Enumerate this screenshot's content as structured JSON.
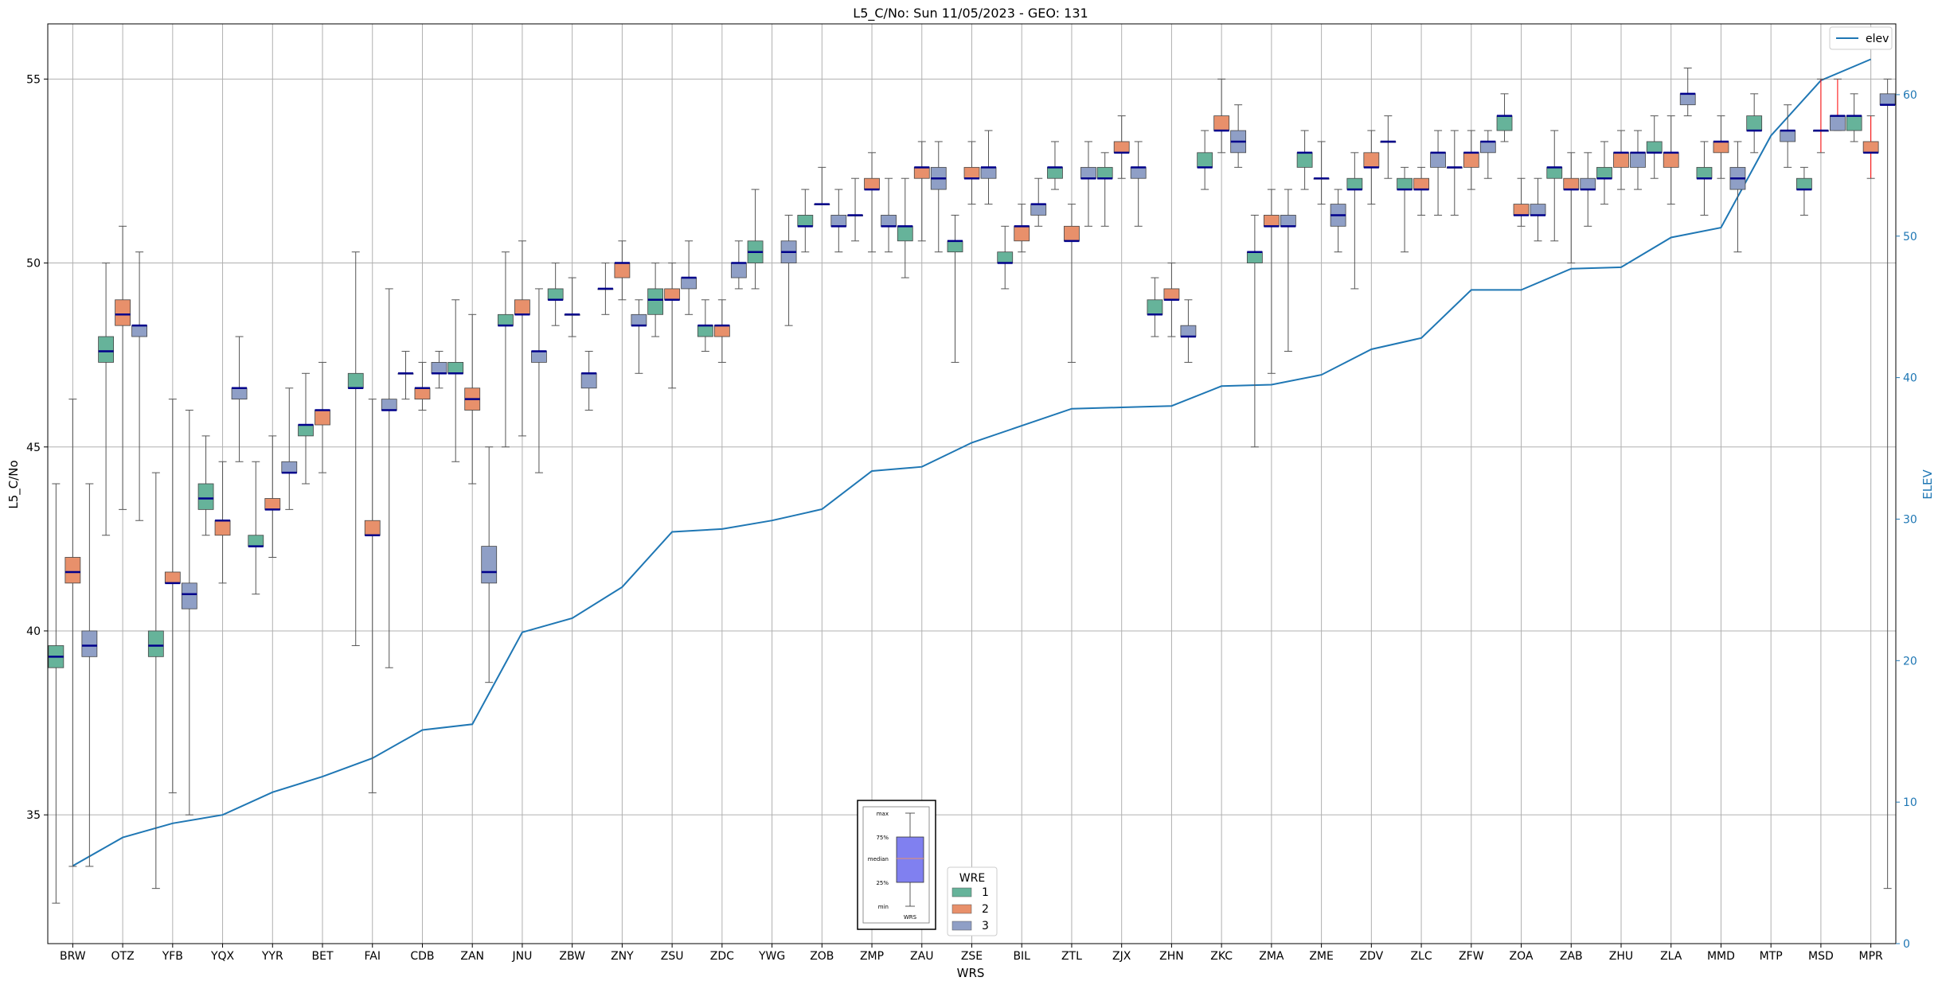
{
  "chart_data": {
    "type": "boxplot",
    "title": "L5_C/No: Sun 11/05/2023 - GEO: 131",
    "xlabel": "WRS",
    "ylabel": "L5_C/No",
    "ylabel_right": "ELEV",
    "ylim": [
      31.5,
      56.5
    ],
    "ylim_right": [
      0,
      65
    ],
    "yticks": [
      35,
      40,
      45,
      50,
      55
    ],
    "yticks_right": [
      0,
      10,
      20,
      30,
      40,
      50,
      60
    ],
    "grid": true,
    "categories": [
      "BRW",
      "OTZ",
      "YFB",
      "YQX",
      "YYR",
      "BET",
      "FAI",
      "CDB",
      "ZAN",
      "JNU",
      "ZBW",
      "ZNY",
      "ZSU",
      "ZDC",
      "YWG",
      "ZOB",
      "ZMP",
      "ZAU",
      "ZSE",
      "BIL",
      "ZTL",
      "ZJX",
      "ZHN",
      "ZKC",
      "ZMA",
      "ZME",
      "ZDV",
      "ZLC",
      "ZFW",
      "ZOA",
      "ZAB",
      "ZHU",
      "ZLA",
      "MMD",
      "MTP",
      "MSD",
      "MPR"
    ],
    "series_colors": {
      "1": "#66b39a",
      "2": "#e8906b",
      "3": "#8f9fc6"
    },
    "median_color": "#00008b",
    "elev_color": "#1f77b4",
    "wre_legend": {
      "title": "WRE",
      "labels": [
        "1",
        "2",
        "3"
      ]
    },
    "elev_legend": "elev",
    "key_box": {
      "labels": [
        "max",
        "75%",
        "median",
        "25%",
        "min"
      ],
      "xlabel": "WRS"
    },
    "boxes": [
      [
        [
          32.6,
          39.0,
          39.3,
          39.6,
          44.0
        ],
        [
          33.6,
          41.3,
          41.6,
          42.0,
          46.3
        ],
        [
          33.6,
          39.3,
          39.6,
          40.0,
          44.0
        ]
      ],
      [
        [
          42.6,
          47.3,
          47.6,
          48.0,
          50.0
        ],
        [
          43.3,
          48.3,
          48.6,
          49.0,
          51.0
        ],
        [
          43.0,
          48.0,
          48.3,
          48.3,
          50.3
        ]
      ],
      [
        [
          33.0,
          39.3,
          39.6,
          40.0,
          44.3
        ],
        [
          35.6,
          41.3,
          41.3,
          41.6,
          46.3
        ],
        [
          35.0,
          40.6,
          41.0,
          41.3,
          46.0
        ]
      ],
      [
        [
          42.6,
          43.3,
          43.6,
          44.0,
          45.3
        ],
        [
          41.3,
          42.6,
          43.0,
          43.0,
          44.6
        ],
        [
          44.6,
          46.3,
          46.6,
          46.6,
          48.0
        ]
      ],
      [
        [
          41.0,
          42.3,
          42.3,
          42.6,
          44.6
        ],
        [
          42.0,
          43.3,
          43.3,
          43.6,
          45.3
        ],
        [
          43.3,
          44.3,
          44.3,
          44.6,
          46.6
        ]
      ],
      [
        [
          44.0,
          45.3,
          45.6,
          45.6,
          47.0
        ],
        [
          44.3,
          45.6,
          46.0,
          46.0,
          47.3
        ],
        null
      ],
      [
        [
          39.6,
          46.6,
          46.6,
          47.0,
          50.3
        ],
        [
          35.6,
          42.6,
          42.6,
          43.0,
          46.3
        ],
        [
          39.0,
          46.0,
          46.0,
          46.3,
          49.3
        ]
      ],
      [
        [
          46.3,
          47.0,
          47.0,
          47.0,
          47.6
        ],
        [
          46.0,
          46.3,
          46.6,
          46.6,
          47.3
        ],
        [
          46.6,
          47.0,
          47.0,
          47.3,
          47.6
        ]
      ],
      [
        [
          44.6,
          47.0,
          47.0,
          47.3,
          49.0
        ],
        [
          44.0,
          46.0,
          46.3,
          46.6,
          48.6
        ],
        [
          38.6,
          41.3,
          41.6,
          42.3,
          45.0
        ]
      ],
      [
        [
          45.0,
          48.3,
          48.3,
          48.6,
          50.3
        ],
        [
          45.3,
          48.6,
          48.6,
          49.0,
          50.6
        ],
        [
          44.3,
          47.3,
          47.6,
          47.6,
          49.3
        ]
      ],
      [
        [
          48.3,
          49.0,
          49.0,
          49.3,
          50.0
        ],
        [
          48.0,
          48.6,
          48.6,
          48.6,
          49.6
        ],
        [
          46.0,
          46.6,
          47.0,
          47.0,
          47.6
        ]
      ],
      [
        [
          48.6,
          49.3,
          49.3,
          49.3,
          50.0
        ],
        [
          49.0,
          49.6,
          50.0,
          50.0,
          50.6
        ],
        [
          47.0,
          48.3,
          48.3,
          48.6,
          49.0
        ]
      ],
      [
        [
          48.0,
          48.6,
          49.0,
          49.3,
          50.0
        ],
        [
          46.6,
          49.0,
          49.0,
          49.3,
          50.0
        ],
        [
          48.6,
          49.3,
          49.6,
          49.6,
          50.6
        ]
      ],
      [
        [
          47.6,
          48.0,
          48.3,
          48.3,
          49.0
        ],
        [
          47.3,
          48.0,
          48.3,
          48.3,
          49.0
        ],
        [
          49.3,
          49.6,
          50.0,
          50.0,
          50.6
        ]
      ],
      [
        [
          49.3,
          50.0,
          50.3,
          50.6,
          52.0
        ],
        null,
        [
          48.3,
          50.0,
          50.3,
          50.6,
          51.3
        ]
      ],
      [
        [
          50.3,
          51.0,
          51.0,
          51.3,
          52.0
        ],
        [
          51.6,
          51.6,
          51.6,
          51.6,
          52.6
        ],
        [
          50.3,
          51.0,
          51.0,
          51.3,
          52.0
        ]
      ],
      [
        [
          50.6,
          51.3,
          51.3,
          51.3,
          52.3
        ],
        [
          50.3,
          52.0,
          52.0,
          52.3,
          53.0
        ],
        [
          50.3,
          51.0,
          51.0,
          51.3,
          52.3
        ]
      ],
      [
        [
          49.6,
          50.6,
          51.0,
          51.0,
          52.3
        ],
        [
          50.6,
          52.3,
          52.6,
          52.6,
          53.3
        ],
        [
          50.3,
          52.0,
          52.3,
          52.6,
          53.3
        ]
      ],
      [
        [
          47.3,
          50.3,
          50.6,
          50.6,
          51.3
        ],
        [
          51.6,
          52.3,
          52.3,
          52.6,
          53.3
        ],
        [
          51.6,
          52.3,
          52.6,
          52.6,
          53.6
        ]
      ],
      [
        [
          49.3,
          50.0,
          50.0,
          50.3,
          51.0
        ],
        [
          50.3,
          50.6,
          51.0,
          51.0,
          51.6
        ],
        [
          51.0,
          51.3,
          51.6,
          51.6,
          52.3
        ]
      ],
      [
        [
          52.0,
          52.3,
          52.6,
          52.6,
          53.3
        ],
        [
          47.3,
          50.6,
          50.6,
          51.0,
          51.6
        ],
        [
          51.0,
          52.3,
          52.3,
          52.6,
          53.3
        ]
      ],
      [
        [
          51.0,
          52.3,
          52.3,
          52.6,
          53.0
        ],
        [
          52.3,
          53.0,
          53.0,
          53.3,
          54.0
        ],
        [
          51.0,
          52.3,
          52.6,
          52.6,
          53.3
        ]
      ],
      [
        [
          48.0,
          48.6,
          48.6,
          49.0,
          49.6
        ],
        [
          48.0,
          49.0,
          49.0,
          49.3,
          50.0
        ],
        [
          47.3,
          48.0,
          48.0,
          48.3,
          49.0
        ]
      ],
      [
        [
          52.0,
          52.6,
          52.6,
          53.0,
          53.6
        ],
        [
          53.0,
          53.6,
          53.6,
          54.0,
          55.0
        ],
        [
          52.6,
          53.0,
          53.3,
          53.6,
          54.3
        ]
      ],
      [
        [
          45.0,
          50.0,
          50.3,
          50.3,
          51.3
        ],
        [
          47.0,
          51.0,
          51.0,
          51.3,
          52.0
        ],
        [
          47.6,
          51.0,
          51.0,
          51.3,
          52.0
        ]
      ],
      [
        [
          52.0,
          52.6,
          53.0,
          53.0,
          53.6
        ],
        [
          51.6,
          52.3,
          52.3,
          52.3,
          53.3
        ],
        [
          50.3,
          51.0,
          51.3,
          51.6,
          52.0
        ]
      ],
      [
        [
          49.3,
          52.0,
          52.0,
          52.3,
          53.0
        ],
        [
          51.6,
          52.6,
          52.6,
          53.0,
          53.6
        ],
        [
          52.3,
          53.3,
          53.3,
          53.3,
          54.0
        ]
      ],
      [
        [
          50.3,
          52.0,
          52.0,
          52.3,
          52.6
        ],
        [
          51.3,
          52.0,
          52.0,
          52.3,
          52.6
        ],
        [
          51.3,
          52.6,
          53.0,
          53.0,
          53.6
        ]
      ],
      [
        [
          51.3,
          52.6,
          52.6,
          52.6,
          53.6
        ],
        [
          52.0,
          52.6,
          53.0,
          53.0,
          53.6
        ],
        [
          52.3,
          53.0,
          53.3,
          53.3,
          53.6
        ]
      ],
      [
        [
          53.3,
          53.6,
          54.0,
          54.0,
          54.6
        ],
        [
          51.0,
          51.3,
          51.3,
          51.6,
          52.3
        ],
        [
          50.6,
          51.3,
          51.3,
          51.6,
          52.3
        ]
      ],
      [
        [
          50.6,
          52.3,
          52.6,
          52.6,
          53.6
        ],
        [
          50.0,
          52.0,
          52.0,
          52.3,
          53.0
        ],
        [
          51.0,
          52.0,
          52.0,
          52.3,
          53.0
        ]
      ],
      [
        [
          51.6,
          52.3,
          52.3,
          52.6,
          53.3
        ],
        [
          52.0,
          52.6,
          53.0,
          53.0,
          53.6
        ],
        [
          52.0,
          52.6,
          53.0,
          53.0,
          53.6
        ]
      ],
      [
        [
          52.3,
          53.0,
          53.0,
          53.3,
          54.0
        ],
        [
          51.6,
          52.6,
          53.0,
          53.0,
          54.0
        ],
        [
          54.0,
          54.3,
          54.6,
          54.6,
          55.3
        ]
      ],
      [
        [
          51.3,
          52.3,
          52.3,
          52.6,
          53.3
        ],
        [
          52.3,
          53.0,
          53.3,
          53.3,
          54.0
        ],
        [
          50.3,
          52.0,
          52.3,
          52.6,
          53.3
        ]
      ],
      [
        [
          53.0,
          53.6,
          53.6,
          54.0,
          54.6
        ],
        null,
        [
          52.6,
          53.3,
          53.6,
          53.6,
          54.3
        ]
      ],
      [
        [
          51.3,
          52.0,
          52.0,
          52.3,
          52.6
        ],
        [
          53.0,
          53.6,
          53.6,
          53.6,
          55.0
        ],
        [
          53.6,
          53.6,
          54.0,
          54.0,
          55.0
        ]
      ],
      [
        [
          53.3,
          53.6,
          54.0,
          54.0,
          54.6
        ],
        [
          52.3,
          53.0,
          53.0,
          53.3,
          54.0
        ],
        [
          33.0,
          54.3,
          54.3,
          54.6,
          55.0
        ]
      ]
    ],
    "elev": [
      5.5,
      7.5,
      8.5,
      9.1,
      10.7,
      11.8,
      13.1,
      15.1,
      15.5,
      22.0,
      23.0,
      25.2,
      29.1,
      29.3,
      29.9,
      30.7,
      33.4,
      33.7,
      35.4,
      36.6,
      37.8,
      37.9,
      38.0,
      39.4,
      39.5,
      40.2,
      42.0,
      42.8,
      46.2,
      46.2,
      47.7,
      47.8,
      49.9,
      50.6,
      57.1,
      61.0,
      62.5
    ],
    "red_whiskers": [
      [
        35,
        1
      ],
      [
        35,
        2
      ],
      [
        36,
        1
      ]
    ]
  }
}
